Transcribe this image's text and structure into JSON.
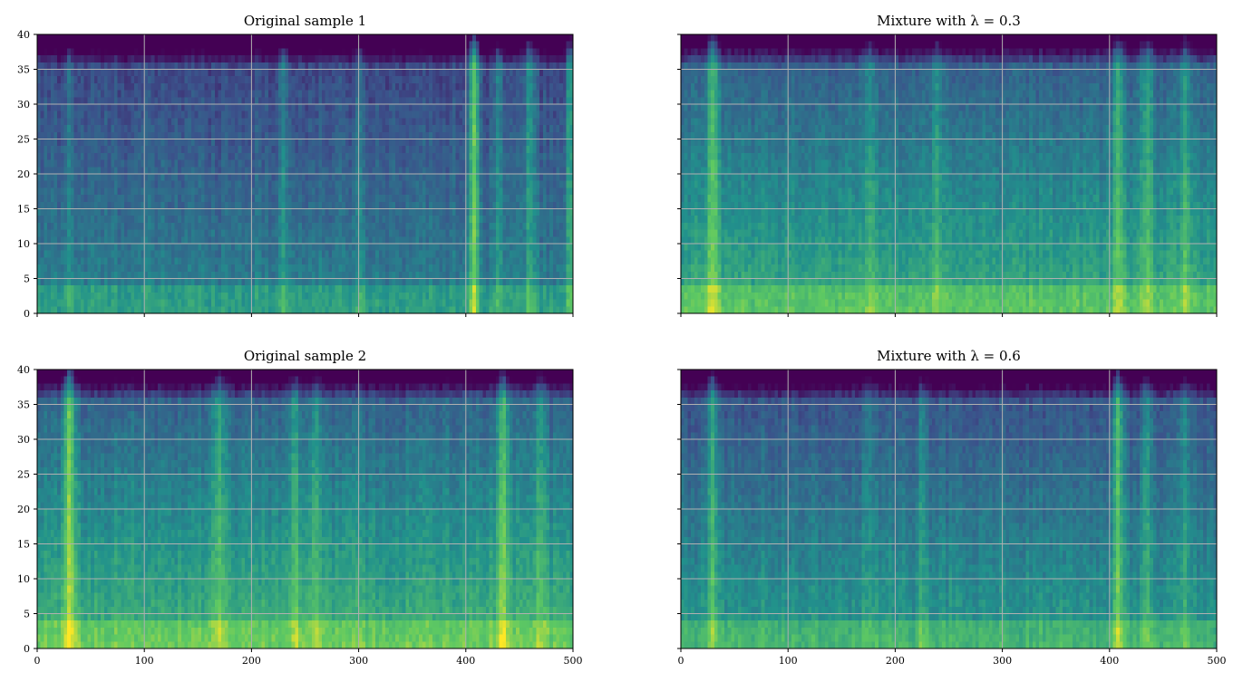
{
  "figure": {
    "colormap": [
      "#440154",
      "#3b528b",
      "#21918c",
      "#5ec962",
      "#fde725"
    ],
    "grid_color": "#b0b0b0"
  },
  "chart_data": [
    {
      "type": "heatmap",
      "title": "Original sample 1",
      "xlim": [
        0,
        500
      ],
      "ylim": [
        0,
        40
      ],
      "xticks": [
        0,
        100,
        200,
        300,
        400,
        500
      ],
      "yticks": [
        0,
        5,
        10,
        15,
        20,
        25,
        30,
        35,
        40
      ],
      "show_x_ticklabels": false,
      "show_y_ticklabels": true,
      "grid": true,
      "num_frames": 500,
      "num_bins": 40,
      "base_level": 0.34,
      "bursts": [
        {
          "x": 30,
          "width": 3,
          "strength": 0.18
        },
        {
          "x": 230,
          "width": 4,
          "strength": 0.2
        },
        {
          "x": 300,
          "width": 4,
          "strength": 0.15
        },
        {
          "x": 408,
          "width": 5,
          "strength": 0.52
        },
        {
          "x": 430,
          "width": 4,
          "strength": 0.25
        },
        {
          "x": 460,
          "width": 5,
          "strength": 0.3
        },
        {
          "x": 497,
          "width": 3,
          "strength": 0.4
        }
      ]
    },
    {
      "type": "heatmap",
      "title": "Mixture with λ = 0.3",
      "xlim": [
        0,
        500
      ],
      "ylim": [
        0,
        40
      ],
      "xticks": [
        0,
        100,
        200,
        300,
        400,
        500
      ],
      "yticks": [
        0,
        5,
        10,
        15,
        20,
        25,
        30,
        35,
        40
      ],
      "show_x_ticklabels": false,
      "show_y_ticklabels": false,
      "grid": true,
      "num_frames": 500,
      "num_bins": 40,
      "base_level": 0.47,
      "bursts": [
        {
          "x": 30,
          "width": 5,
          "strength": 0.38
        },
        {
          "x": 175,
          "width": 5,
          "strength": 0.18
        },
        {
          "x": 240,
          "width": 6,
          "strength": 0.15
        },
        {
          "x": 408,
          "width": 5,
          "strength": 0.3
        },
        {
          "x": 435,
          "width": 6,
          "strength": 0.25
        },
        {
          "x": 470,
          "width": 6,
          "strength": 0.2
        }
      ]
    },
    {
      "type": "heatmap",
      "title": "Original sample 2",
      "xlim": [
        0,
        500
      ],
      "ylim": [
        0,
        40
      ],
      "xticks": [
        0,
        100,
        200,
        300,
        400,
        500
      ],
      "yticks": [
        0,
        5,
        10,
        15,
        20,
        25,
        30,
        35,
        40
      ],
      "show_x_ticklabels": true,
      "show_y_ticklabels": true,
      "grid": true,
      "num_frames": 500,
      "num_bins": 40,
      "base_level": 0.5,
      "bursts": [
        {
          "x": 30,
          "width": 5,
          "strength": 0.45
        },
        {
          "x": 170,
          "width": 6,
          "strength": 0.25
        },
        {
          "x": 240,
          "width": 5,
          "strength": 0.2
        },
        {
          "x": 260,
          "width": 5,
          "strength": 0.18
        },
        {
          "x": 435,
          "width": 6,
          "strength": 0.32
        },
        {
          "x": 470,
          "width": 5,
          "strength": 0.2
        }
      ]
    },
    {
      "type": "heatmap",
      "title": "Mixture with λ = 0.6",
      "xlim": [
        0,
        500
      ],
      "ylim": [
        0,
        40
      ],
      "xticks": [
        0,
        100,
        200,
        300,
        400,
        500
      ],
      "yticks": [
        0,
        5,
        10,
        15,
        20,
        25,
        30,
        35,
        40
      ],
      "show_x_ticklabels": true,
      "show_y_ticklabels": false,
      "grid": true,
      "num_frames": 500,
      "num_bins": 40,
      "base_level": 0.42,
      "bursts": [
        {
          "x": 30,
          "width": 5,
          "strength": 0.3
        },
        {
          "x": 175,
          "width": 5,
          "strength": 0.15
        },
        {
          "x": 225,
          "width": 4,
          "strength": 0.2
        },
        {
          "x": 408,
          "width": 5,
          "strength": 0.42
        },
        {
          "x": 435,
          "width": 5,
          "strength": 0.22
        },
        {
          "x": 470,
          "width": 6,
          "strength": 0.18
        }
      ]
    }
  ]
}
